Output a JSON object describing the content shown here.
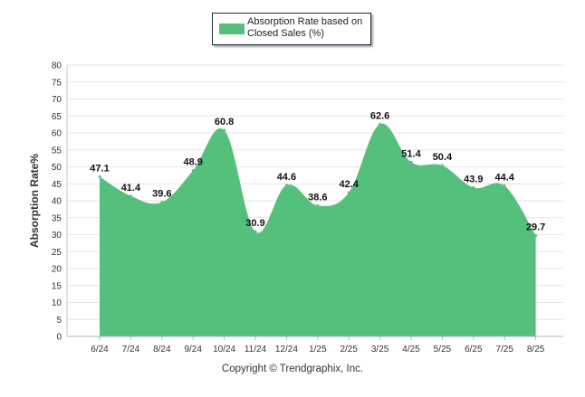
{
  "chart_data": {
    "type": "area",
    "title": "",
    "xlabel": "",
    "ylabel": "Absorption Rate%",
    "ylim": [
      0,
      80
    ],
    "ytick_step": 5,
    "grid": true,
    "legend_position": "top-center",
    "categories": [
      "6/24",
      "7/24",
      "8/24",
      "9/24",
      "10/24",
      "11/24",
      "12/24",
      "1/25",
      "2/25",
      "3/25",
      "4/25",
      "5/25",
      "6/25",
      "7/25",
      "8/25"
    ],
    "series": [
      {
        "name": "Absorption Rate based on Closed Sales (%)",
        "values": [
          47.1,
          41.4,
          39.6,
          48.9,
          60.8,
          30.9,
          44.6,
          38.6,
          42.4,
          62.6,
          51.4,
          50.4,
          43.9,
          44.4,
          29.7
        ],
        "color": "#55c07c"
      }
    ]
  },
  "legend": {
    "label": "Absorption Rate based on Closed Sales (%)"
  },
  "footer": {
    "copyright": "Copyright © Trendgraphix, Inc."
  }
}
